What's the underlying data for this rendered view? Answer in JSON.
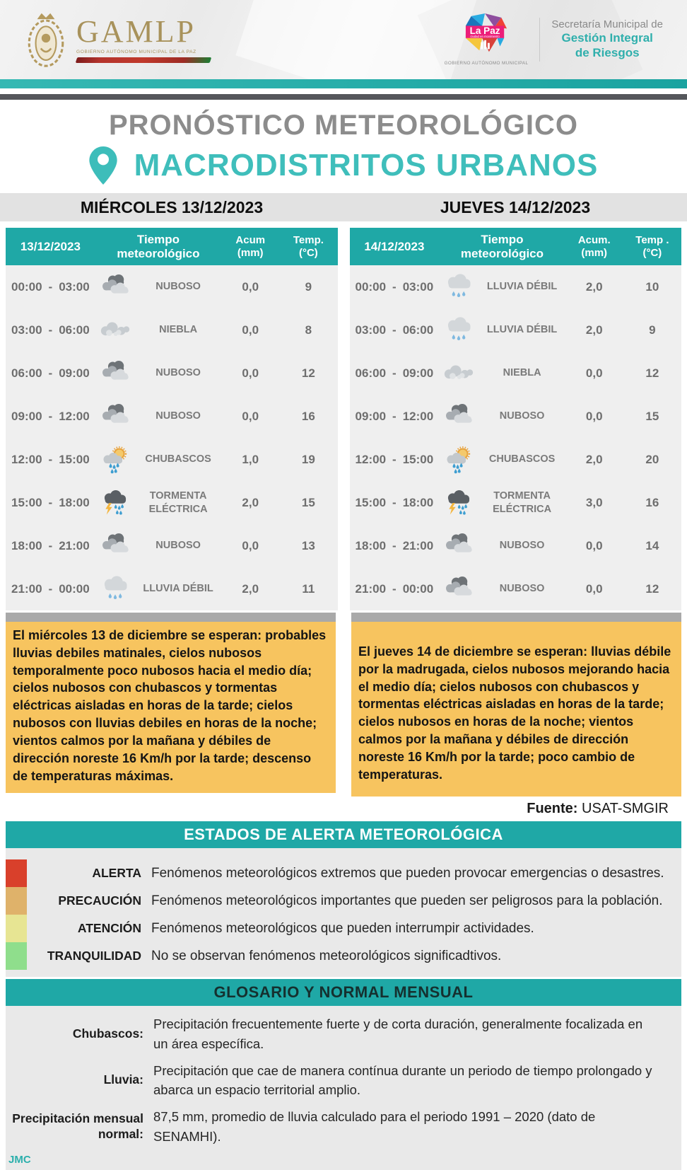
{
  "header": {
    "gamlp": {
      "acronym": "GAMLP",
      "caption": "GOBIERNO AUTÓNOMO MUNICIPAL DE LA PAZ"
    },
    "lapaz": {
      "title": "La Paz",
      "subtitle": "ciudad en movimiento",
      "caption": "GOBIERNO AUTÓNOMO MUNICIPAL"
    },
    "secretaria": {
      "line1": "Secretaría Municipal de",
      "line2": "Gestión Integral",
      "line3": "de Riesgos"
    }
  },
  "titles": {
    "main": "PRONÓSTICO METEOROLÓGICO",
    "subtitle": "MACRODISTRITOS URBANOS"
  },
  "days": [
    {
      "label": "MIÉRCOLES 13/12/2023"
    },
    {
      "label": "JUEVES 14/12/2023"
    }
  ],
  "forecast": {
    "time_separator": "-",
    "tables": [
      {
        "date": "13/12/2023",
        "col_weather": "Tiempo meteorológico",
        "col_acum_1": "Acum",
        "col_acum_2": "(mm)",
        "col_temp_1": "Temp.",
        "col_temp_2": "(°C)",
        "rows": [
          {
            "start": "00:00",
            "end": "03:00",
            "icon": "i-nuboso",
            "icon_name": "nuboso-icon",
            "condition": "NUBOSO",
            "acum": "0,0",
            "temp": "9"
          },
          {
            "start": "03:00",
            "end": "06:00",
            "icon": "i-niebla",
            "icon_name": "niebla-icon",
            "condition": "NIEBLA",
            "acum": "0,0",
            "temp": "8"
          },
          {
            "start": "06:00",
            "end": "09:00",
            "icon": "i-nuboso",
            "icon_name": "nuboso-icon",
            "condition": "NUBOSO",
            "acum": "0,0",
            "temp": "12"
          },
          {
            "start": "09:00",
            "end": "12:00",
            "icon": "i-nuboso",
            "icon_name": "nuboso-icon",
            "condition": "NUBOSO",
            "acum": "0,0",
            "temp": "16"
          },
          {
            "start": "12:00",
            "end": "15:00",
            "icon": "i-chubascos",
            "icon_name": "chubascos-icon",
            "condition": "CHUBASCOS",
            "acum": "1,0",
            "temp": "19"
          },
          {
            "start": "15:00",
            "end": "18:00",
            "icon": "i-tormenta",
            "icon_name": "tormenta-electrica-icon",
            "condition": "TORMENTA ELÉCTRICA",
            "acum": "2,0",
            "temp": "15"
          },
          {
            "start": "18:00",
            "end": "21:00",
            "icon": "i-nuboso",
            "icon_name": "nuboso-icon",
            "condition": "NUBOSO",
            "acum": "0,0",
            "temp": "13"
          },
          {
            "start": "21:00",
            "end": "00:00",
            "icon": "i-lluvia",
            "icon_name": "lluvia-debil-icon",
            "condition": "LLUVIA DÉBIL",
            "acum": "2,0",
            "temp": "11"
          }
        ]
      },
      {
        "date": "14/12/2023",
        "col_weather": "Tiempo meteorológico",
        "col_acum_1": "Acum.",
        "col_acum_2": "(mm)",
        "col_temp_1": "Temp .",
        "col_temp_2": "(°C)",
        "rows": [
          {
            "start": "00:00",
            "end": "03:00",
            "icon": "i-lluvia",
            "icon_name": "lluvia-debil-icon",
            "condition": "LLUVIA DÉBIL",
            "acum": "2,0",
            "temp": "10"
          },
          {
            "start": "03:00",
            "end": "06:00",
            "icon": "i-lluvia",
            "icon_name": "lluvia-debil-icon",
            "condition": "LLUVIA DÉBIL",
            "acum": "2,0",
            "temp": "9"
          },
          {
            "start": "06:00",
            "end": "09:00",
            "icon": "i-niebla",
            "icon_name": "niebla-icon",
            "condition": "NIEBLA",
            "acum": "0,0",
            "temp": "12"
          },
          {
            "start": "09:00",
            "end": "12:00",
            "icon": "i-nuboso",
            "icon_name": "nuboso-icon",
            "condition": "NUBOSO",
            "acum": "0,0",
            "temp": "15"
          },
          {
            "start": "12:00",
            "end": "15:00",
            "icon": "i-chubascos",
            "icon_name": "chubascos-icon",
            "condition": "CHUBASCOS",
            "acum": "2,0",
            "temp": "20"
          },
          {
            "start": "15:00",
            "end": "18:00",
            "icon": "i-tormenta",
            "icon_name": "tormenta-electrica-icon",
            "condition": "TORMENTA ELÉCTRICA",
            "acum": "3,0",
            "temp": "16"
          },
          {
            "start": "18:00",
            "end": "21:00",
            "icon": "i-nuboso",
            "icon_name": "nuboso-icon",
            "condition": "NUBOSO",
            "acum": "0,0",
            "temp": "14"
          },
          {
            "start": "21:00",
            "end": "00:00",
            "icon": "i-nuboso",
            "icon_name": "nuboso-icon",
            "condition": "NUBOSO",
            "acum": "0,0",
            "temp": "12"
          }
        ]
      }
    ]
  },
  "summaries": [
    {
      "text": "El miércoles 13 de diciembre se esperan: probables lluvias debiles matinales, cielos nubosos temporalmente poco nubosos hacia el medio día; cielos nubosos con chubascos y tormentas eléctricas aisladas en horas de la tarde; cielos nubosos con lluvias debiles en horas de la noche; vientos calmos por la mañana y débiles de dirección noreste 16 Km/h por la tarde; descenso de temperaturas máximas."
    },
    {
      "text": "El jueves 14 de diciembre se esperan: lluvias débile por la madrugada, cielos nubosos mejorando hacia el medio día; cielos nubosos con chubascos y tormentas eléctricas aisladas en horas de la tarde; cielos nubosos en horas de la noche; vientos calmos por la mañana y débiles de dirección noreste 16 Km/h por la tarde; poco cambio de temperaturas."
    }
  ],
  "source": {
    "label": "Fuente:",
    "value": "USAT-SMGIR"
  },
  "alerts": {
    "header": "ESTADOS DE ALERTA METEOROLÓGICA",
    "items": [
      {
        "label": "ALERTA",
        "color": "#D9402B",
        "text": "Fenómenos meteorológicos extremos que pueden provocar emergencias o desastres."
      },
      {
        "label": "PRECAUCIÓN",
        "color": "#DFB26A",
        "text": "Fenómenos meteorológicos importantes que pueden ser peligrosos para la población."
      },
      {
        "label": "ATENCIÓN",
        "color": "#E7E593",
        "text": "Fenómenos meteorológicos que pueden interrumpir actividades."
      },
      {
        "label": "TRANQUILIDAD",
        "color": "#8FDE8C",
        "text": "No se observan fenómenos meteorológicos significadtivos."
      }
    ]
  },
  "glossary": {
    "header": "GLOSARIO Y NORMAL MENSUAL",
    "items": [
      {
        "term": "Chubascos:",
        "definition": "Precipitación frecuentemente fuerte y de corta duración, generalmente focalizada en un área específica."
      },
      {
        "term": "Lluvia:",
        "definition": "Precipitación que cae de manera contínua durante un periodo de tiempo prolongado y abarca un espacio territorial amplio."
      },
      {
        "term": "Precipitación mensual normal:",
        "definition": "87,5 mm, promedio de lluvia calculado para el periodo 1991 – 2020 (dato de SENAMHI)."
      }
    ]
  },
  "footer": {
    "initials": "JMC"
  }
}
